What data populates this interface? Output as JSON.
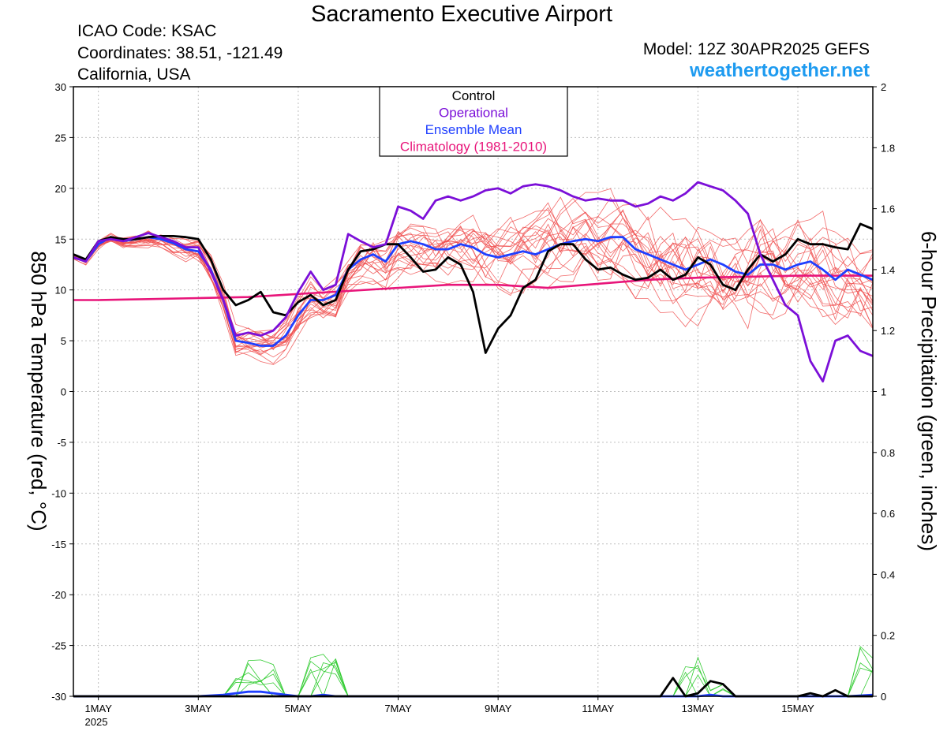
{
  "header": {
    "title": "Sacramento Executive Airport",
    "icao": "ICAO Code: KSAC",
    "coordinates": "Coordinates: 38.51, -121.49",
    "region": "California, USA",
    "model": "Model: 12Z 30APR2025 GEFS",
    "site": "weathertogether.net"
  },
  "colors": {
    "control": "#000000",
    "operational": "#7b0fd8",
    "ensemble_mean": "#1f3fff",
    "climatology": "#e8157a",
    "members_temp": "#f05050",
    "members_precip": "#33cc33",
    "site": "#1e9bf0",
    "grid": "#bfbfbf"
  },
  "chart_data": {
    "type": "line",
    "xlabel": "",
    "ylabel_left": "850 hPa Temperature (red, °C)",
    "ylabel_right": "6-hour Precipitation (green, inches)",
    "ylim_left": [
      -30,
      30
    ],
    "ylim_right": [
      0,
      2
    ],
    "left_ticks": [
      "30",
      "25",
      "20",
      "15",
      "10",
      "5",
      "0",
      "-5",
      "-10",
      "-15",
      "-20",
      "-25",
      "-30"
    ],
    "right_ticks": [
      "2",
      "1.8",
      "1.6",
      "1.4",
      "1.2",
      "1",
      "0.8",
      "0.6",
      "0.4",
      "0.2",
      "0"
    ],
    "x_ticks": [
      {
        "day": 1,
        "label": "1MAY"
      },
      {
        "day": 3,
        "label": "3MAY"
      },
      {
        "day": 5,
        "label": "5MAY"
      },
      {
        "day": 7,
        "label": "7MAY"
      },
      {
        "day": 9,
        "label": "9MAY"
      },
      {
        "day": 11,
        "label": "11MAY"
      },
      {
        "day": 13,
        "label": "13MAY"
      },
      {
        "day": 15,
        "label": "15MAY"
      }
    ],
    "x_year": "2025",
    "xlim_days": [
      0.5,
      16.5
    ],
    "grid": true,
    "legend": {
      "placement": "top-center",
      "entries": [
        {
          "label": "Control",
          "color": "#000000"
        },
        {
          "label": "Operational",
          "color": "#7b0fd8"
        },
        {
          "label": "Ensemble Mean",
          "color": "#1f3fff"
        },
        {
          "label": "Climatology (1981-2010)",
          "color": "#e8157a"
        }
      ]
    },
    "series": [
      {
        "name": "Operational",
        "axis": "left",
        "x": [
          0.5,
          0.75,
          1.0,
          1.25,
          1.5,
          1.75,
          2.0,
          2.25,
          2.5,
          2.75,
          3.0,
          3.25,
          3.5,
          3.75,
          4.0,
          4.25,
          4.5,
          4.75,
          5.0,
          5.25,
          5.5,
          5.75,
          6.0,
          6.25,
          6.5,
          6.75,
          7.0,
          7.25,
          7.5,
          7.75,
          8.0,
          8.25,
          8.5,
          8.75,
          9.0,
          9.25,
          9.5,
          9.75,
          10.0,
          10.25,
          10.5,
          10.75,
          11.0,
          11.25,
          11.5,
          11.75,
          12.0,
          12.25,
          12.5,
          12.75,
          13.0,
          13.25,
          13.5,
          13.75,
          14.0,
          14.25,
          14.5,
          14.75,
          15.0,
          15.25,
          15.5,
          15.75,
          16.0,
          16.25,
          16.5
        ],
        "y": [
          13.2,
          12.8,
          14.8,
          15.0,
          14.8,
          15.2,
          15.6,
          15.2,
          14.8,
          14.2,
          14.2,
          11.8,
          9.0,
          5.5,
          5.8,
          5.5,
          6.0,
          7.3,
          9.8,
          11.8,
          10.0,
          10.5,
          15.5,
          14.8,
          14.2,
          14.5,
          18.2,
          17.8,
          17.0,
          18.8,
          19.2,
          18.8,
          19.2,
          19.8,
          20.0,
          19.5,
          20.2,
          20.4,
          20.2,
          19.8,
          19.2,
          18.8,
          19.0,
          18.8,
          18.8,
          18.2,
          18.5,
          19.2,
          18.8,
          19.5,
          20.6,
          20.2,
          19.8,
          18.8,
          17.5,
          13.5,
          11.0,
          8.5,
          7.5,
          3.0,
          1.0,
          5.0,
          5.5,
          4.0,
          3.5
        ]
      },
      {
        "name": "Ensemble Mean",
        "axis": "left",
        "x": [
          0.5,
          0.75,
          1.0,
          1.25,
          1.5,
          1.75,
          2.0,
          2.25,
          2.5,
          2.75,
          3.0,
          3.25,
          3.5,
          3.75,
          4.0,
          4.25,
          4.5,
          4.75,
          5.0,
          5.25,
          5.5,
          5.75,
          6.0,
          6.25,
          6.5,
          6.75,
          7.0,
          7.25,
          7.5,
          7.75,
          8.0,
          8.25,
          8.5,
          8.75,
          9.0,
          9.25,
          9.5,
          9.75,
          10.0,
          10.25,
          10.5,
          10.75,
          11.0,
          11.25,
          11.5,
          11.75,
          12.0,
          12.25,
          12.5,
          12.75,
          13.0,
          13.25,
          13.5,
          13.75,
          14.0,
          14.25,
          14.5,
          14.75,
          15.0,
          15.25,
          15.5,
          15.75,
          16.0,
          16.25,
          16.5
        ],
        "y": [
          13.2,
          12.8,
          14.5,
          15.2,
          14.8,
          15.0,
          15.2,
          15.0,
          14.6,
          14.0,
          13.8,
          12.0,
          9.0,
          5.0,
          4.8,
          4.5,
          4.5,
          5.5,
          7.5,
          9.0,
          9.0,
          9.5,
          12.0,
          13.0,
          13.5,
          12.8,
          14.5,
          14.8,
          14.5,
          14.0,
          14.0,
          14.5,
          14.2,
          13.5,
          13.2,
          13.5,
          13.8,
          13.5,
          14.0,
          14.5,
          14.8,
          15.0,
          14.8,
          15.2,
          15.2,
          14.0,
          13.5,
          13.0,
          12.5,
          12.0,
          12.5,
          13.0,
          12.5,
          11.8,
          11.5,
          12.5,
          12.5,
          12.0,
          12.5,
          12.8,
          12.0,
          11.0,
          12.0,
          11.5,
          11.0
        ]
      },
      {
        "name": "Control",
        "axis": "left",
        "x": [
          0.5,
          0.75,
          1.0,
          1.25,
          1.5,
          1.75,
          2.0,
          2.25,
          2.5,
          2.75,
          3.0,
          3.25,
          3.5,
          3.75,
          4.0,
          4.25,
          4.5,
          4.75,
          5.0,
          5.25,
          5.5,
          5.75,
          6.0,
          6.25,
          6.5,
          6.75,
          7.0,
          7.25,
          7.5,
          7.75,
          8.0,
          8.25,
          8.5,
          8.75,
          9.0,
          9.25,
          9.5,
          9.75,
          10.0,
          10.25,
          10.5,
          10.75,
          11.0,
          11.25,
          11.5,
          11.75,
          12.0,
          12.25,
          12.5,
          12.75,
          13.0,
          13.25,
          13.5,
          13.75,
          14.0,
          14.25,
          14.5,
          14.75,
          15.0,
          15.25,
          15.5,
          15.75,
          16.0,
          16.25,
          16.5
        ],
        "y": [
          13.5,
          13.0,
          14.8,
          15.2,
          15.0,
          15.0,
          15.2,
          15.3,
          15.3,
          15.2,
          15.0,
          13.0,
          10.0,
          8.5,
          9.0,
          9.8,
          7.8,
          7.5,
          8.8,
          9.5,
          8.5,
          9.0,
          12.0,
          13.8,
          14.0,
          14.5,
          14.5,
          13.2,
          11.8,
          12.0,
          13.2,
          12.5,
          9.8,
          3.8,
          6.2,
          7.5,
          10.2,
          11.0,
          13.8,
          14.5,
          14.5,
          13.0,
          12.0,
          12.2,
          11.5,
          11.0,
          11.2,
          12.0,
          11.0,
          11.5,
          13.2,
          12.5,
          10.5,
          10.0,
          12.0,
          13.5,
          12.8,
          13.5,
          15.0,
          14.5,
          14.5,
          14.2,
          14.0,
          16.5,
          16.0
        ]
      },
      {
        "name": "Climatology (1981-2010)",
        "axis": "left",
        "x": [
          0.5,
          1.0,
          2.0,
          3.0,
          4.0,
          5.0,
          6.0,
          7.0,
          8.0,
          9.0,
          10.0,
          11.0,
          12.0,
          13.0,
          14.0,
          15.0,
          16.0,
          16.5
        ],
        "y": [
          9.0,
          9.0,
          9.1,
          9.2,
          9.3,
          9.6,
          9.9,
          10.2,
          10.5,
          10.5,
          10.2,
          10.6,
          11.0,
          11.2,
          11.3,
          11.4,
          11.4,
          11.4
        ]
      },
      {
        "name": "Control",
        "axis": "right",
        "x": [
          0.5,
          12.0,
          12.25,
          12.5,
          12.75,
          13.0,
          13.25,
          13.5,
          13.75,
          14.0,
          15.0,
          15.25,
          15.5,
          15.75,
          16.0,
          16.25,
          16.5
        ],
        "y": [
          0,
          0,
          0,
          0.06,
          0,
          0.01,
          0.05,
          0.04,
          0,
          0,
          0,
          0.01,
          0,
          0.02,
          0,
          0,
          0
        ]
      },
      {
        "name": "Ensemble Mean",
        "axis": "right",
        "x": [
          0.5,
          3.0,
          3.5,
          4.0,
          4.25,
          4.5,
          4.75,
          5.0,
          5.25,
          5.5,
          5.75,
          6.0,
          12.5,
          13.0,
          13.25,
          13.5,
          16.0,
          16.5
        ],
        "y": [
          0,
          0,
          0.005,
          0.015,
          0.015,
          0.01,
          0.005,
          0,
          0,
          0.005,
          0,
          0,
          0,
          0,
          0.005,
          0,
          0,
          0.005
        ]
      }
    ]
  }
}
